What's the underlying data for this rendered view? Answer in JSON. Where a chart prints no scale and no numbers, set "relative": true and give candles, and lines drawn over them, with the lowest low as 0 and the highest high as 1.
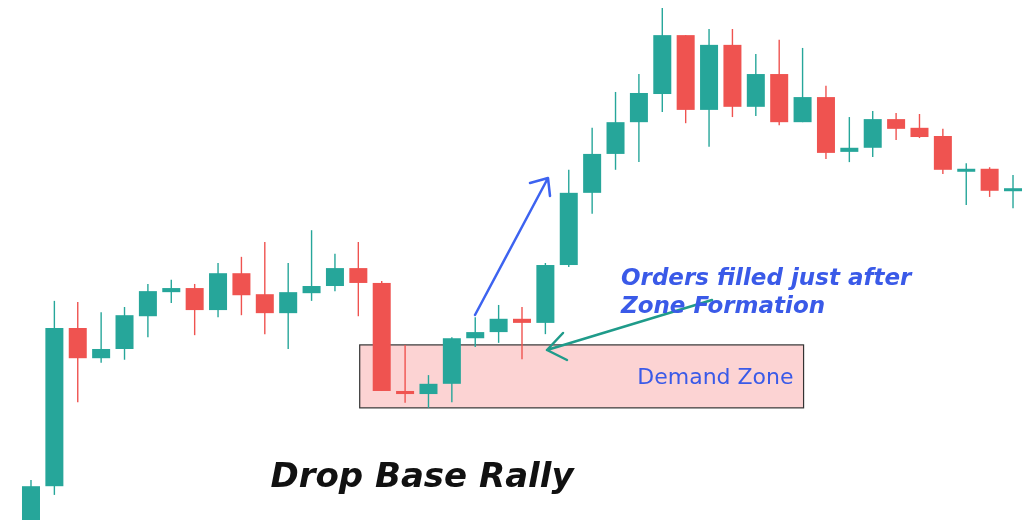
{
  "chart_data": {
    "type": "candlestick",
    "title": "Drop Base Rally",
    "relative": true,
    "categories": [
      null,
      null,
      null,
      null,
      null,
      null,
      null,
      null,
      null,
      null,
      null,
      null,
      null,
      null,
      null,
      null,
      null,
      null,
      null,
      null,
      null,
      null,
      null,
      null,
      null,
      null,
      null,
      null,
      null,
      null,
      null,
      null,
      null,
      null,
      null,
      null,
      null,
      null,
      null,
      null,
      null,
      null,
      null
    ],
    "ohlc": [
      [
        0,
        0.078,
        0,
        0.066
      ],
      [
        0.066,
        0.428,
        0.049,
        0.375
      ],
      [
        0.375,
        0.426,
        0.23,
        0.316
      ],
      [
        0.316,
        0.406,
        0.307,
        0.334
      ],
      [
        0.334,
        0.416,
        0.313,
        0.4
      ],
      [
        0.398,
        0.461,
        0.357,
        0.447
      ],
      [
        0.445,
        0.469,
        0.424,
        0.453
      ],
      [
        0.453,
        0.461,
        0.361,
        0.41
      ],
      [
        0.41,
        0.502,
        0.396,
        0.482
      ],
      [
        0.482,
        0.514,
        0.4,
        0.439
      ],
      [
        0.441,
        0.543,
        0.363,
        0.404
      ],
      [
        0.404,
        0.502,
        0.334,
        0.445
      ],
      [
        0.443,
        0.566,
        0.428,
        0.457
      ],
      [
        0.457,
        0.52,
        0.447,
        0.492
      ],
      [
        0.492,
        0.543,
        0.398,
        0.463
      ],
      [
        0.463,
        0.467,
        0.252,
        0.252
      ],
      [
        0.252,
        0.342,
        0.229,
        0.246
      ],
      [
        0.246,
        0.283,
        0.219,
        0.266
      ],
      [
        0.266,
        0.357,
        0.23,
        0.355
      ],
      [
        0.355,
        0.396,
        0.338,
        0.367
      ],
      [
        0.367,
        0.42,
        0.346,
        0.393
      ],
      [
        0.393,
        0.416,
        0.314,
        0.385
      ],
      [
        0.385,
        0.502,
        0.363,
        0.498
      ],
      [
        0.498,
        0.684,
        0.494,
        0.639
      ],
      [
        0.639,
        0.766,
        0.598,
        0.715
      ],
      [
        0.715,
        0.836,
        0.684,
        0.777
      ],
      [
        0.777,
        0.871,
        0.699,
        0.834
      ],
      [
        0.832,
        1,
        0.797,
        0.947
      ],
      [
        0.947,
        0.947,
        0.775,
        0.801
      ],
      [
        0.801,
        0.959,
        0.729,
        0.928
      ],
      [
        0.928,
        0.959,
        0.787,
        0.807
      ],
      [
        0.807,
        0.91,
        0.789,
        0.871
      ],
      [
        0.871,
        0.938,
        0.771,
        0.777
      ],
      [
        0.777,
        0.922,
        0.777,
        0.826
      ],
      [
        0.826,
        0.848,
        0.705,
        0.717
      ],
      [
        0.719,
        0.787,
        0.699,
        0.727
      ],
      [
        0.727,
        0.799,
        0.709,
        0.783
      ],
      [
        0.783,
        0.795,
        0.742,
        0.764
      ],
      [
        0.766,
        0.793,
        0.746,
        0.748
      ],
      [
        0.75,
        0.764,
        0.676,
        0.684
      ],
      [
        0.684,
        0.697,
        0.615,
        0.686
      ],
      [
        0.686,
        0.689,
        0.631,
        0.643
      ],
      [
        0.643,
        0.674,
        0.609,
        0.648
      ]
    ],
    "colors": [
      "#26a69a",
      "#26a69a",
      "#ef5350",
      "#26a69a",
      "#26a69a",
      "#26a69a",
      "#26a69a",
      "#ef5350",
      "#26a69a",
      "#ef5350",
      "#ef5350",
      "#26a69a",
      "#26a69a",
      "#26a69a",
      "#ef5350",
      "#ef5350",
      "#ef5350",
      "#26a69a",
      "#26a69a",
      "#26a69a",
      "#26a69a",
      "#ef5350",
      "#26a69a",
      "#26a69a",
      "#26a69a",
      "#26a69a",
      "#26a69a",
      "#26a69a",
      "#ef5350",
      "#26a69a",
      "#ef5350",
      "#26a69a",
      "#ef5350",
      "#26a69a",
      "#ef5350",
      "#26a69a",
      "#26a69a",
      "#ef5350",
      "#ef5350",
      "#ef5350",
      "#26a69a",
      "#ef5350",
      "#26a69a"
    ],
    "bands": [
      {
        "axis": "y",
        "from": 0.219,
        "to": 0.342,
        "label": "Demand Zone",
        "color": "#fcd3d3"
      }
    ],
    "annotations": [
      "Orders filled just after\nZone Formation"
    ]
  }
}
